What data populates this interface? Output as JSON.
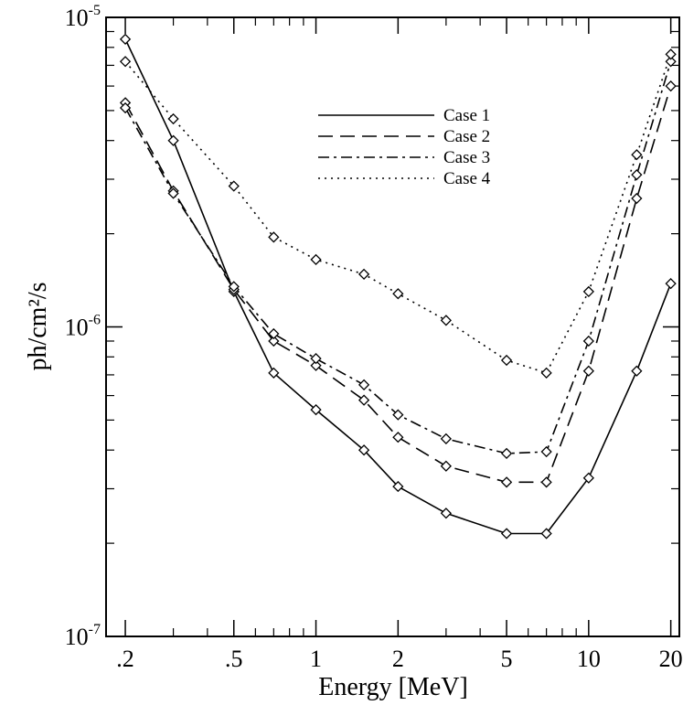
{
  "chart_data": {
    "type": "line",
    "title": "",
    "xlabel": "Energy [MeV]",
    "ylabel": "ph/cm²/s",
    "xscale": "log",
    "yscale": "log",
    "xlim": [
      0.17,
      21.5
    ],
    "ylim": [
      1e-07,
      1e-05
    ],
    "grid": false,
    "legend_position": "top-center",
    "x_ticks": [
      {
        "value": 0.2,
        "label": ".2"
      },
      {
        "value": 0.5,
        "label": ".5"
      },
      {
        "value": 1,
        "label": "1"
      },
      {
        "value": 2,
        "label": "2"
      },
      {
        "value": 5,
        "label": "5"
      },
      {
        "value": 10,
        "label": "10"
      },
      {
        "value": 20,
        "label": "20"
      }
    ],
    "y_ticks": [
      {
        "value": 1e-07,
        "base": "10",
        "exp": "-7"
      },
      {
        "value": 1e-06,
        "base": "10",
        "exp": "-6"
      },
      {
        "value": 1e-05,
        "base": "10",
        "exp": "-5"
      }
    ],
    "x": [
      0.2,
      0.3,
      0.5,
      0.7,
      1,
      1.5,
      2,
      3,
      5,
      7,
      10,
      15,
      20
    ],
    "series": [
      {
        "name": "Case 1",
        "dash": "solid",
        "values": [
          8.5e-06,
          4e-06,
          1.3e-06,
          7.1e-07,
          5.4e-07,
          4e-07,
          3.05e-07,
          2.5e-07,
          2.15e-07,
          2.15e-07,
          3.25e-07,
          7.2e-07,
          1.38e-06
        ]
      },
      {
        "name": "Case 2",
        "dash": "dashed",
        "values": [
          5.3e-06,
          2.75e-06,
          1.32e-06,
          9e-07,
          7.5e-07,
          5.8e-07,
          4.4e-07,
          3.55e-07,
          3.15e-07,
          3.15e-07,
          7.2e-07,
          2.6e-06,
          6e-06
        ]
      },
      {
        "name": "Case 3",
        "dash": "dashdot",
        "values": [
          5.1e-06,
          2.7e-06,
          1.35e-06,
          9.5e-07,
          7.9e-07,
          6.5e-07,
          5.2e-07,
          4.35e-07,
          3.9e-07,
          3.95e-07,
          9e-07,
          3.1e-06,
          7.2e-06
        ]
      },
      {
        "name": "Case 4",
        "dash": "dotted",
        "values": [
          7.2e-06,
          4.7e-06,
          2.85e-06,
          1.95e-06,
          1.65e-06,
          1.48e-06,
          1.28e-06,
          1.05e-06,
          7.8e-07,
          7.1e-07,
          1.3e-06,
          3.6e-06,
          7.6e-06
        ]
      }
    ]
  }
}
